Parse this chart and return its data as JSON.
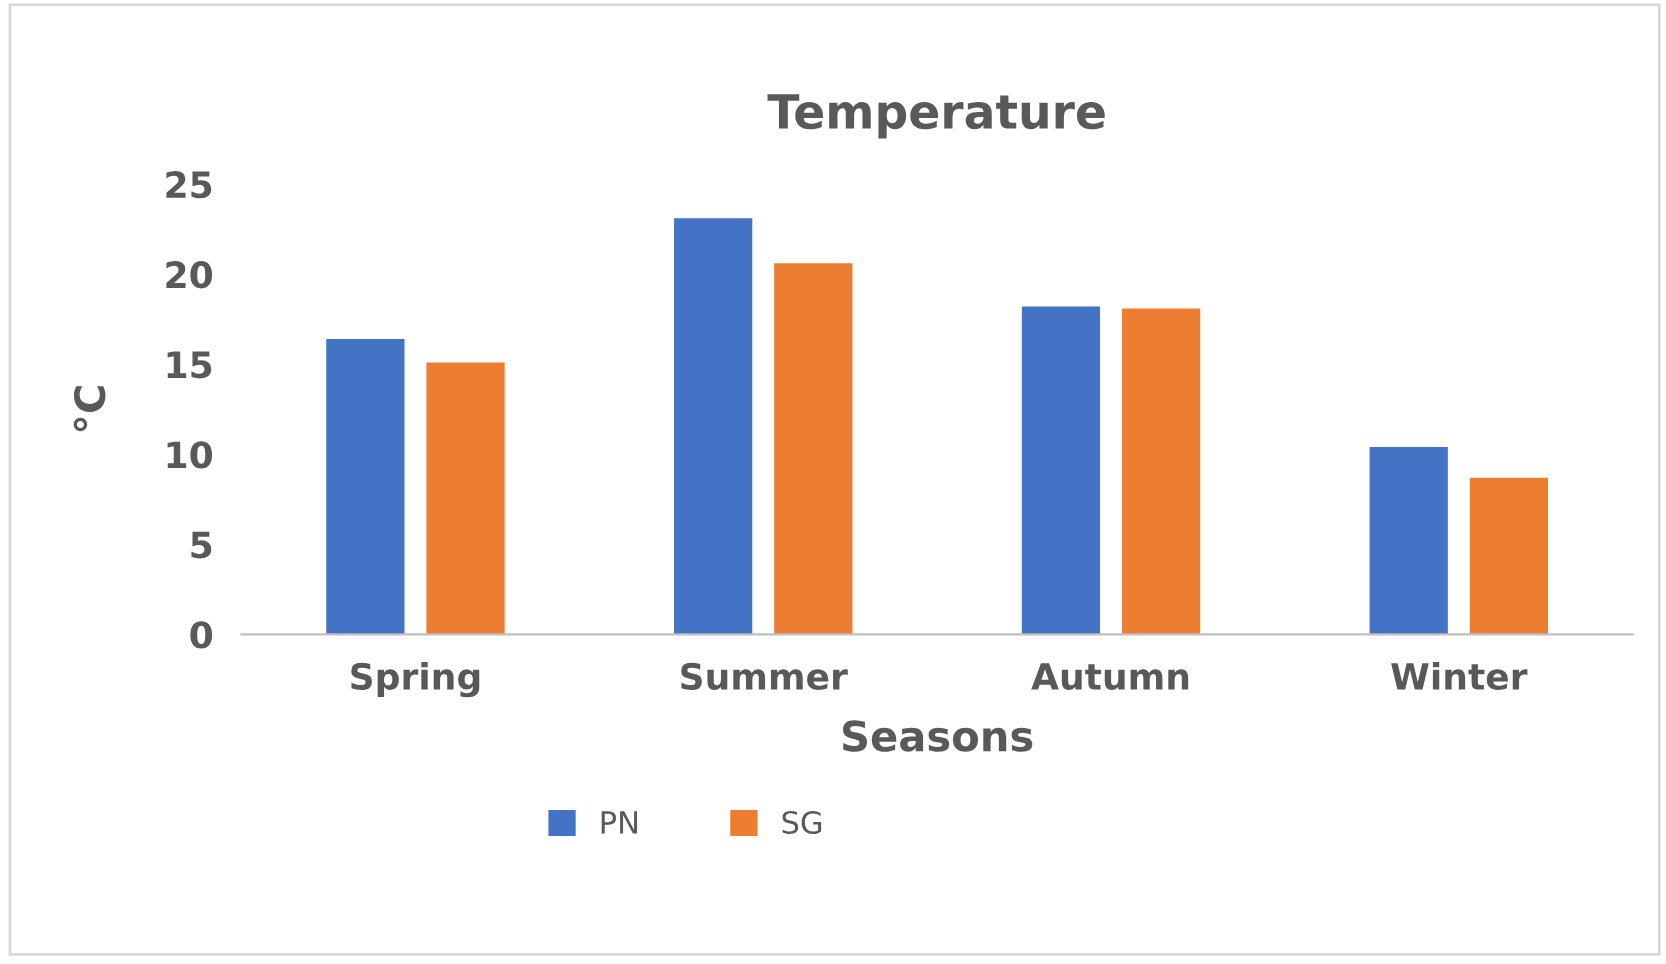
{
  "chart_data": {
    "type": "bar",
    "title": "Temperature",
    "xlabel": "Seasons",
    "ylabel": "°C",
    "categories": [
      "Spring",
      "Summer",
      "Autumn",
      "Winter"
    ],
    "series": [
      {
        "name": "PN",
        "color": "#4472c4",
        "values": [
          16.4,
          23.1,
          18.2,
          10.4
        ]
      },
      {
        "name": "SG",
        "color": "#ed7d31",
        "values": [
          15.1,
          20.6,
          18.1,
          8.7
        ]
      }
    ],
    "ylim": [
      0,
      25
    ],
    "yticks": [
      0,
      5,
      10,
      15,
      20,
      25
    ],
    "grid": false,
    "legend": "bottom"
  }
}
